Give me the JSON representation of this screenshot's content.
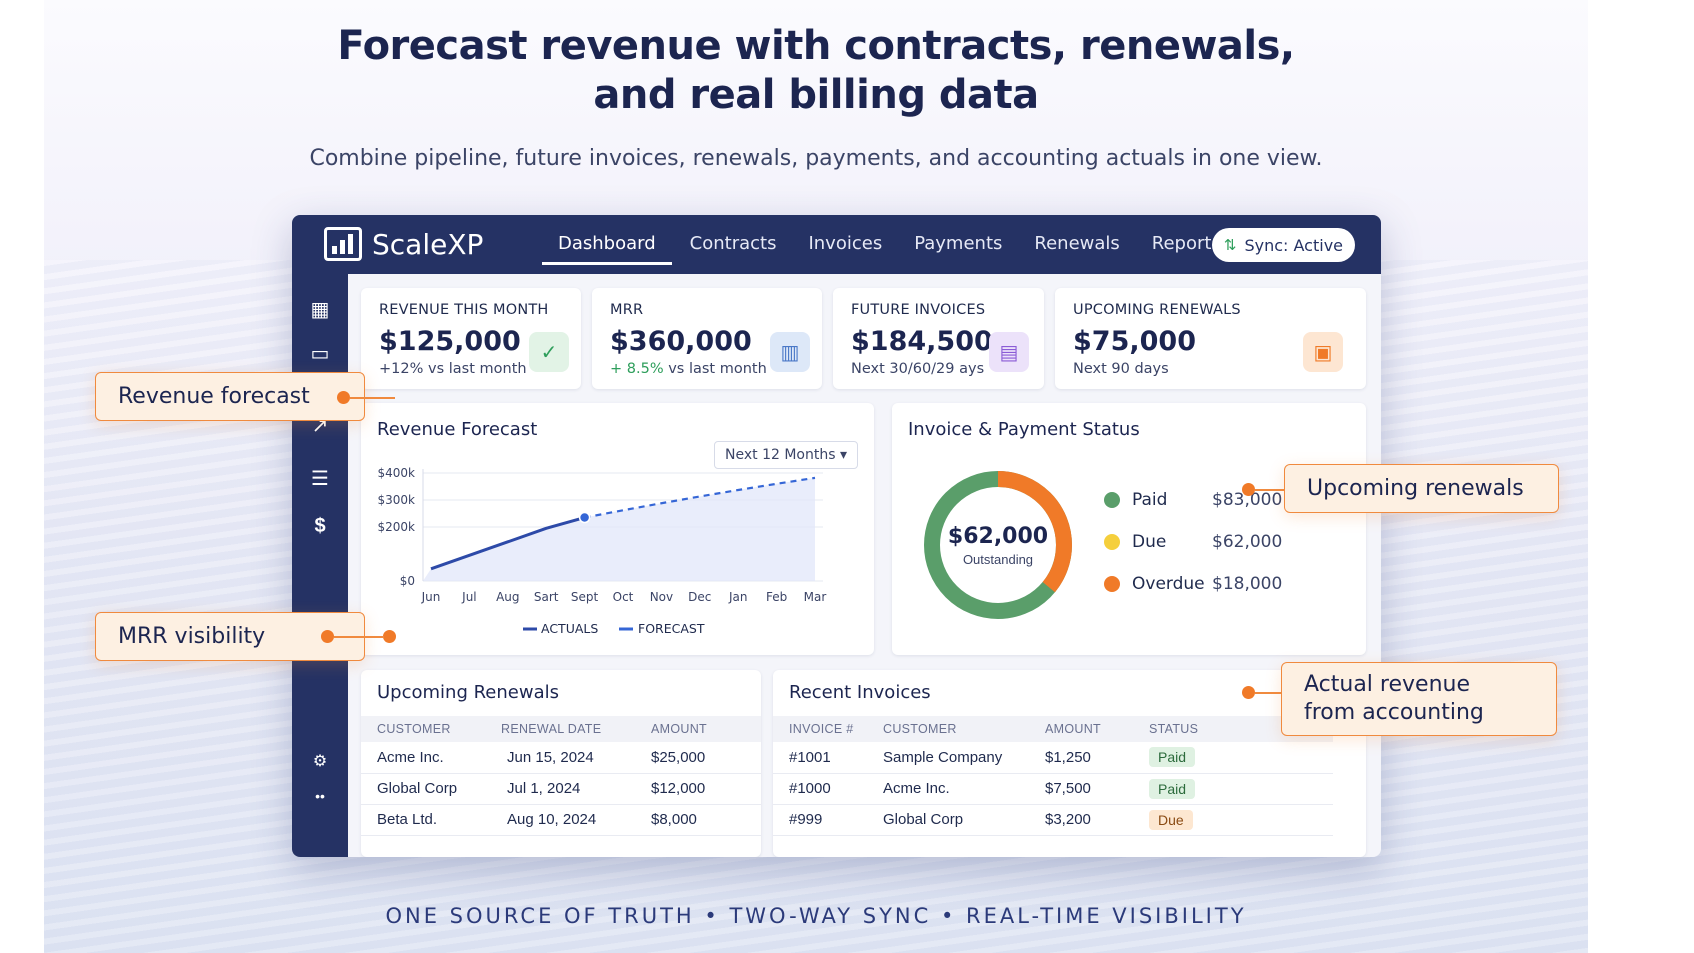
{
  "hero": {
    "title_line1": "Forecast revenue with contracts, renewals,",
    "title_line2": "and real billing data",
    "subtitle": "Combine pipeline, future invoices, renewals, payments, and accounting actuals in one view.",
    "footer": "ONE SOURCE OF TRUTH • TWO-WAY SYNC • REAL-TIME VISIBILITY"
  },
  "app": {
    "brand": "ScaleXP",
    "nav": [
      "Dashboard",
      "Contracts",
      "Invoices",
      "Payments",
      "Renewals",
      "Reports"
    ],
    "active_nav": "Dashboard",
    "sync_label": "Sync: Active",
    "sidebar_icons": [
      "grid-icon",
      "briefcase-icon",
      "trend-arrow-icon",
      "list-icon",
      "dollar-icon",
      "settings-icon",
      "more-icon"
    ]
  },
  "kpis": [
    {
      "label": "REVENUE THIS MONTH",
      "value": "$125,000",
      "delta": "+12%",
      "sub": "vs last month",
      "icon": "check-circle-icon",
      "accent": "#2e9e5b"
    },
    {
      "label": "MRR",
      "value": "$360,000",
      "delta": "+ 8.5%",
      "sub": "vs last month",
      "icon": "bar-chart-icon",
      "accent": "#4a78c7"
    },
    {
      "label": "FUTURE INVOICES",
      "value": "$184,500",
      "delta": "",
      "sub": "Next 30/60/29 ays",
      "icon": "calendar-list-icon",
      "accent": "#8b5cd6"
    },
    {
      "label": "UPCOMING RENEWALS",
      "value": "$75,000",
      "delta": "",
      "sub": "Next 90 days",
      "icon": "calendar-icon",
      "accent": "#f07a28"
    }
  ],
  "forecast": {
    "title": "Revenue Forecast",
    "range": "Next 12 Months",
    "legend_actuals": "ACTUALS",
    "legend_forecast": "FORECAST"
  },
  "chart_data": {
    "type": "line",
    "title": "Revenue Forecast",
    "categories": [
      "Jun",
      "Jul",
      "Aug",
      "Sart",
      "Sept",
      "Oct",
      "Nov",
      "Dec",
      "Jan",
      "Feb",
      "Mar"
    ],
    "yticks": [
      "$0",
      "$200k",
      "$300k",
      "$400k"
    ],
    "ylim": [
      0,
      400000
    ],
    "series": [
      {
        "name": "ACTUALS",
        "values": [
          45000,
          95000,
          145000,
          195000,
          235000,
          null,
          null,
          null,
          null,
          null,
          null
        ]
      },
      {
        "name": "FORECAST",
        "values": [
          null,
          null,
          null,
          null,
          235000,
          262000,
          288000,
          313000,
          337000,
          360000,
          382000
        ]
      }
    ],
    "grid": true,
    "legend_position": "bottom"
  },
  "status": {
    "title": "Invoice & Payment Status",
    "center_value": "$62,000",
    "center_label": "Outstanding",
    "items": [
      {
        "name": "Paid",
        "amount": "$83,000",
        "color": "#5a9e6a",
        "value": 83000
      },
      {
        "name": "Due",
        "amount": "$62,000",
        "color": "#f5cf3c",
        "value": 62000
      },
      {
        "name": "Overdue",
        "amount": "$18,000",
        "color": "#f07a28",
        "value": 18000
      }
    ]
  },
  "renewals": {
    "title": "Upcoming Renewals",
    "headers": [
      "CUSTOMER",
      "RENEWAL DATE",
      "AMOUNT"
    ],
    "rows": [
      [
        "Acme Inc.",
        "Jun 15, 2024",
        "$25,000"
      ],
      [
        "Global Corp",
        "Jul 1, 2024",
        "$12,000"
      ],
      [
        "Beta Ltd.",
        "Aug 10, 2024",
        "$8,000"
      ]
    ]
  },
  "invoices": {
    "title": "Recent Invoices",
    "headers": [
      "INVOICE #",
      "CUSTOMER",
      "AMOUNT",
      "STATUS"
    ],
    "rows": [
      [
        "#1001",
        "Sample Company",
        "$1,250",
        "Paid"
      ],
      [
        "#1000",
        "Acme Inc.",
        "$7,500",
        "Paid"
      ],
      [
        "#999",
        "Global Corp",
        "$3,200",
        "Due"
      ]
    ]
  },
  "callouts": {
    "revenue_forecast": "Revenue forecast",
    "mrr_visibility": "MRR visibility",
    "upcoming_renewals": "Upcoming renewals",
    "actual_revenue_line1": "Actual revenue",
    "actual_revenue_line2": "from accounting"
  }
}
